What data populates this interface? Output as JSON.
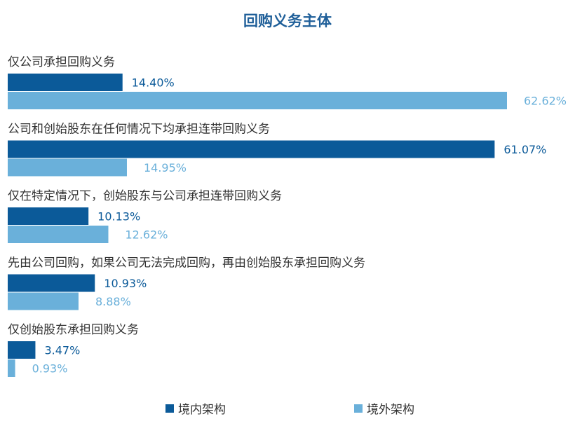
{
  "chart_data": {
    "type": "bar",
    "orientation": "horizontal",
    "title": "回购义务主体",
    "categories": [
      "仅公司承担回购义务",
      "公司和创始股东在任何情况下均承担连带回购义务",
      "仅在特定情况下，创始股东与公司承担连带回购义务",
      "先由公司回购，如果公司无法完成回购，再由创始股东承担回购义务",
      "仅创始股东承担回购义务"
    ],
    "series": [
      {
        "name": "境内架构",
        "color": "#0b5a99",
        "values": [
          14.4,
          61.07,
          10.13,
          10.93,
          3.47
        ],
        "labels": [
          "14.40%",
          "61.07%",
          "10.13%",
          "10.93%",
          "3.47%"
        ]
      },
      {
        "name": "境外架构",
        "color": "#6ab0da",
        "values": [
          62.62,
          14.95,
          12.62,
          8.88,
          0.93
        ],
        "labels": [
          "62.62%",
          "14.95%",
          "12.62%",
          "8.88%",
          "0.93%"
        ]
      }
    ],
    "xlim": [
      0,
      62.62
    ],
    "grid": false,
    "legend_position": "bottom"
  }
}
